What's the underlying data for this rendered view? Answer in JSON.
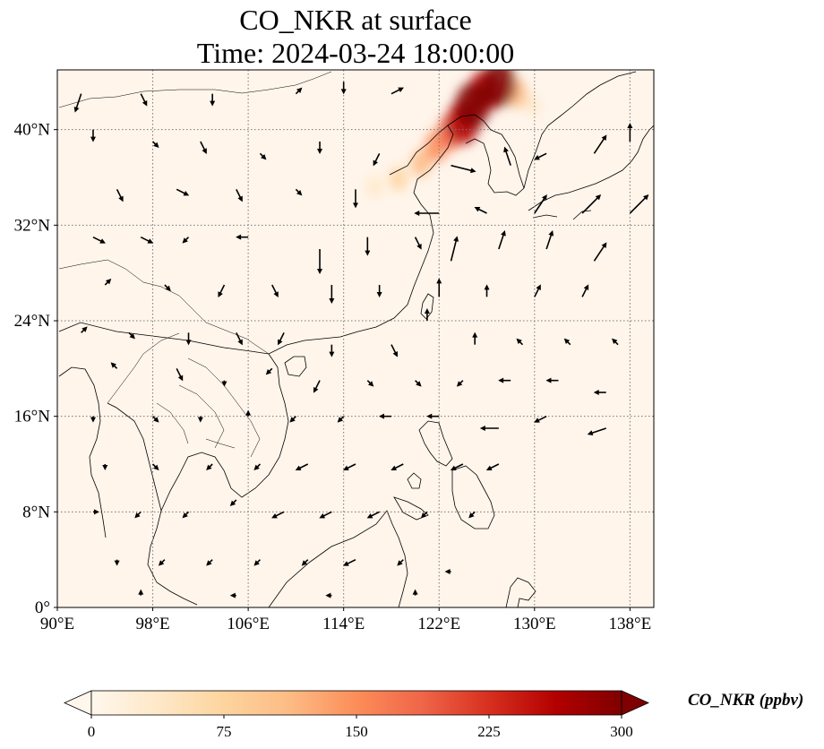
{
  "title": {
    "line1": "CO_NKR at surface",
    "line2": "Time: 2024-03-24 18:00:00"
  },
  "map": {
    "extent": {
      "lon_min": 90,
      "lon_max": 140,
      "lat_min": 0,
      "lat_max": 45
    },
    "lon_ticks": [
      90,
      98,
      106,
      114,
      122,
      130,
      138
    ],
    "lon_tick_labels": [
      "90°E",
      "98°E",
      "106°E",
      "114°E",
      "122°E",
      "130°E",
      "138°E"
    ],
    "lat_ticks": [
      0,
      8,
      16,
      24,
      32,
      40
    ],
    "lat_tick_labels": [
      "0°",
      "8°N",
      "16°N",
      "24°N",
      "32°N",
      "40°N"
    ],
    "gridlines": true,
    "background_color": "#fff5eb",
    "plume": [
      {
        "lon": 127.0,
        "lat": 43.8,
        "value": 300
      },
      {
        "lon": 125.8,
        "lat": 43.2,
        "value": 260
      },
      {
        "lon": 124.8,
        "lat": 42.0,
        "value": 300
      },
      {
        "lon": 124.0,
        "lat": 40.6,
        "value": 280
      },
      {
        "lon": 123.0,
        "lat": 39.8,
        "value": 200
      },
      {
        "lon": 121.8,
        "lat": 38.6,
        "value": 150
      },
      {
        "lon": 120.5,
        "lat": 37.2,
        "value": 110
      },
      {
        "lon": 118.6,
        "lat": 35.9,
        "value": 80
      },
      {
        "lon": 116.6,
        "lat": 35.2,
        "value": 50
      },
      {
        "lon": 128.5,
        "lat": 43.0,
        "value": 120
      },
      {
        "lon": 129.8,
        "lat": 42.0,
        "value": 40
      }
    ],
    "wind": [
      {
        "lon": 92,
        "lat": 43,
        "u": -1,
        "v": -3
      },
      {
        "lon": 97,
        "lat": 43,
        "u": 1,
        "v": -2
      },
      {
        "lon": 103,
        "lat": 43,
        "u": 0,
        "v": -2
      },
      {
        "lon": 110,
        "lat": 43,
        "u": 1,
        "v": 1
      },
      {
        "lon": 114,
        "lat": 44,
        "u": 0,
        "v": -2
      },
      {
        "lon": 118,
        "lat": 43,
        "u": 2,
        "v": 1
      },
      {
        "lon": 93,
        "lat": 40,
        "u": 0,
        "v": -2
      },
      {
        "lon": 98,
        "lat": 39,
        "u": 1,
        "v": -1
      },
      {
        "lon": 102,
        "lat": 39,
        "u": 1,
        "v": -2
      },
      {
        "lon": 107,
        "lat": 38,
        "u": 1,
        "v": -1
      },
      {
        "lon": 112,
        "lat": 39,
        "u": 0,
        "v": -2
      },
      {
        "lon": 117,
        "lat": 38,
        "u": -1,
        "v": -2
      },
      {
        "lon": 123,
        "lat": 37,
        "u": 4,
        "v": -1
      },
      {
        "lon": 128,
        "lat": 37,
        "u": -1,
        "v": 3
      },
      {
        "lon": 131,
        "lat": 38,
        "u": -2,
        "v": -1
      },
      {
        "lon": 135,
        "lat": 38,
        "u": 2,
        "v": 3
      },
      {
        "lon": 138,
        "lat": 39,
        "u": 0,
        "v": 3
      },
      {
        "lon": 95,
        "lat": 35,
        "u": 1,
        "v": -2
      },
      {
        "lon": 100,
        "lat": 35,
        "u": 2,
        "v": -1
      },
      {
        "lon": 105,
        "lat": 35,
        "u": 1,
        "v": -2
      },
      {
        "lon": 110,
        "lat": 35,
        "u": 1,
        "v": -1
      },
      {
        "lon": 115,
        "lat": 35,
        "u": 0,
        "v": -3
      },
      {
        "lon": 122,
        "lat": 33,
        "u": -4,
        "v": 0
      },
      {
        "lon": 126,
        "lat": 33,
        "u": -2,
        "v": 1
      },
      {
        "lon": 130,
        "lat": 33,
        "u": 2,
        "v": 3
      },
      {
        "lon": 134,
        "lat": 33,
        "u": 3,
        "v": 3
      },
      {
        "lon": 138,
        "lat": 33,
        "u": 3,
        "v": 3
      },
      {
        "lon": 93,
        "lat": 31,
        "u": 2,
        "v": -1
      },
      {
        "lon": 97,
        "lat": 31,
        "u": 2,
        "v": -1
      },
      {
        "lon": 101,
        "lat": 31,
        "u": -1,
        "v": -1
      },
      {
        "lon": 106,
        "lat": 31,
        "u": -2,
        "v": 0
      },
      {
        "lon": 112,
        "lat": 30,
        "u": 0,
        "v": -4
      },
      {
        "lon": 116,
        "lat": 31,
        "u": 0,
        "v": -3
      },
      {
        "lon": 120,
        "lat": 31,
        "u": 1,
        "v": -2
      },
      {
        "lon": 123,
        "lat": 29,
        "u": 1,
        "v": 4
      },
      {
        "lon": 127,
        "lat": 30,
        "u": 1,
        "v": 3
      },
      {
        "lon": 131,
        "lat": 30,
        "u": 1,
        "v": 3
      },
      {
        "lon": 135,
        "lat": 29,
        "u": 2,
        "v": 3
      },
      {
        "lon": 94,
        "lat": 27,
        "u": 1,
        "v": 1
      },
      {
        "lon": 99,
        "lat": 27,
        "u": 1,
        "v": -1
      },
      {
        "lon": 104,
        "lat": 27,
        "u": -1,
        "v": -2
      },
      {
        "lon": 108,
        "lat": 27,
        "u": 1,
        "v": -2
      },
      {
        "lon": 113,
        "lat": 27,
        "u": 0,
        "v": -3
      },
      {
        "lon": 117,
        "lat": 27,
        "u": 0,
        "v": -2
      },
      {
        "lon": 122,
        "lat": 26,
        "u": 0,
        "v": 3
      },
      {
        "lon": 126,
        "lat": 26,
        "u": 0,
        "v": 2
      },
      {
        "lon": 130,
        "lat": 26,
        "u": 1,
        "v": 2
      },
      {
        "lon": 134,
        "lat": 26,
        "u": 1,
        "v": 2
      },
      {
        "lon": 92,
        "lat": 23,
        "u": 1,
        "v": 1
      },
      {
        "lon": 96,
        "lat": 23,
        "u": 1,
        "v": -1
      },
      {
        "lon": 101,
        "lat": 23,
        "u": 0,
        "v": -2
      },
      {
        "lon": 105,
        "lat": 23,
        "u": 1,
        "v": -2
      },
      {
        "lon": 109,
        "lat": 23,
        "u": -1,
        "v": -2
      },
      {
        "lon": 113,
        "lat": 22,
        "u": 0,
        "v": -2
      },
      {
        "lon": 118,
        "lat": 22,
        "u": 1,
        "v": -2
      },
      {
        "lon": 121,
        "lat": 24,
        "u": 0,
        "v": 2
      },
      {
        "lon": 125,
        "lat": 22,
        "u": 0,
        "v": 2
      },
      {
        "lon": 129,
        "lat": 22,
        "u": -1,
        "v": 1
      },
      {
        "lon": 133,
        "lat": 22,
        "u": -1,
        "v": 1
      },
      {
        "lon": 137,
        "lat": 22,
        "u": -1,
        "v": 1
      },
      {
        "lon": 95,
        "lat": 20,
        "u": -1,
        "v": 1
      },
      {
        "lon": 100,
        "lat": 20,
        "u": 1,
        "v": -2
      },
      {
        "lon": 104,
        "lat": 19,
        "u": 0,
        "v": -1
      },
      {
        "lon": 108,
        "lat": 20,
        "u": -1,
        "v": -1
      },
      {
        "lon": 112,
        "lat": 19,
        "u": -1,
        "v": -2
      },
      {
        "lon": 116,
        "lat": 19,
        "u": 1,
        "v": -1
      },
      {
        "lon": 120,
        "lat": 19,
        "u": 1,
        "v": -1
      },
      {
        "lon": 124,
        "lat": 19,
        "u": -1,
        "v": -1
      },
      {
        "lon": 128,
        "lat": 19,
        "u": -2,
        "v": 0
      },
      {
        "lon": 132,
        "lat": 19,
        "u": -2,
        "v": 0
      },
      {
        "lon": 136,
        "lat": 18,
        "u": -2,
        "v": 0
      },
      {
        "lon": 93,
        "lat": 16,
        "u": 0,
        "v": -1
      },
      {
        "lon": 98,
        "lat": 16,
        "u": 1,
        "v": -1
      },
      {
        "lon": 102,
        "lat": 16,
        "u": 0,
        "v": -1
      },
      {
        "lon": 106,
        "lat": 16,
        "u": 0,
        "v": 1
      },
      {
        "lon": 110,
        "lat": 16,
        "u": -1,
        "v": -1
      },
      {
        "lon": 114,
        "lat": 16,
        "u": -1,
        "v": -1
      },
      {
        "lon": 118,
        "lat": 16,
        "u": -2,
        "v": 0
      },
      {
        "lon": 122,
        "lat": 16,
        "u": -2,
        "v": 0
      },
      {
        "lon": 127,
        "lat": 15,
        "u": -3,
        "v": 0
      },
      {
        "lon": 131,
        "lat": 16,
        "u": -2,
        "v": -1
      },
      {
        "lon": 136,
        "lat": 15,
        "u": -3,
        "v": -1
      },
      {
        "lon": 94,
        "lat": 12,
        "u": 0,
        "v": -1
      },
      {
        "lon": 98,
        "lat": 12,
        "u": 1,
        "v": -1
      },
      {
        "lon": 103,
        "lat": 12,
        "u": -1,
        "v": -1
      },
      {
        "lon": 107,
        "lat": 12,
        "u": -1,
        "v": -1
      },
      {
        "lon": 111,
        "lat": 12,
        "u": -2,
        "v": -1
      },
      {
        "lon": 115,
        "lat": 12,
        "u": -2,
        "v": -1
      },
      {
        "lon": 119,
        "lat": 12,
        "u": -2,
        "v": -1
      },
      {
        "lon": 124,
        "lat": 12,
        "u": -2,
        "v": -1
      },
      {
        "lon": 127,
        "lat": 12,
        "u": -2,
        "v": -1
      },
      {
        "lon": 93,
        "lat": 8,
        "u": 1,
        "v": 0
      },
      {
        "lon": 97,
        "lat": 8,
        "u": -1,
        "v": -1
      },
      {
        "lon": 101,
        "lat": 8,
        "u": -1,
        "v": -1
      },
      {
        "lon": 105,
        "lat": 9,
        "u": -1,
        "v": -1
      },
      {
        "lon": 109,
        "lat": 8,
        "u": -2,
        "v": -1
      },
      {
        "lon": 113,
        "lat": 8,
        "u": -2,
        "v": -1
      },
      {
        "lon": 117,
        "lat": 8,
        "u": -2,
        "v": -1
      },
      {
        "lon": 121,
        "lat": 8,
        "u": -1,
        "v": -1
      },
      {
        "lon": 125,
        "lat": 8,
        "u": -1,
        "v": -1
      },
      {
        "lon": 95,
        "lat": 4,
        "u": 0,
        "v": -1
      },
      {
        "lon": 99,
        "lat": 4,
        "u": -1,
        "v": -1
      },
      {
        "lon": 103,
        "lat": 4,
        "u": -1,
        "v": -1
      },
      {
        "lon": 107,
        "lat": 4,
        "u": -1,
        "v": -1
      },
      {
        "lon": 111,
        "lat": 4,
        "u": -1,
        "v": -1
      },
      {
        "lon": 115,
        "lat": 4,
        "u": -2,
        "v": -1
      },
      {
        "lon": 119,
        "lat": 4,
        "u": -1,
        "v": -1
      },
      {
        "lon": 123,
        "lat": 3,
        "u": -1,
        "v": 0
      },
      {
        "lon": 97,
        "lat": 1,
        "u": 0,
        "v": 1
      },
      {
        "lon": 105,
        "lat": 1,
        "u": -1,
        "v": 0
      },
      {
        "lon": 113,
        "lat": 1,
        "u": -1,
        "v": 0
      },
      {
        "lon": 120,
        "lat": 1,
        "u": 0,
        "v": 1
      }
    ]
  },
  "colorbar": {
    "label": "CO_NKR (ppbv)",
    "min": 0,
    "max": 300,
    "ticks": [
      0,
      75,
      150,
      225,
      300
    ],
    "tick_labels": [
      "0",
      "75",
      "150",
      "225",
      "300"
    ],
    "extend": "both",
    "colormap": "OrRd",
    "colors": [
      "#fff7ec",
      "#fee8c8",
      "#fdd49e",
      "#fdbb84",
      "#fc8d59",
      "#ef6548",
      "#d7301f",
      "#b30000",
      "#7f0000"
    ]
  }
}
